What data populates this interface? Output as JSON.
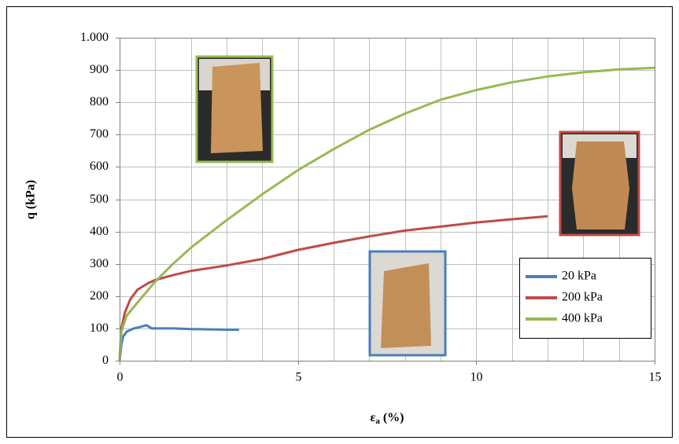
{
  "chart_data": {
    "type": "line",
    "y_label": "q (kPa)",
    "x_label": {
      "symbol": "ε",
      "subscript": "a",
      "unit": "(%)"
    },
    "xlim": [
      0,
      15
    ],
    "ylim": [
      0,
      1000
    ],
    "xticks": [
      0,
      5,
      10,
      15
    ],
    "xgrid": [
      1,
      2,
      3,
      4,
      5,
      6,
      7,
      8,
      9,
      10,
      11,
      12,
      13,
      14,
      15
    ],
    "yticks": [
      0,
      100,
      200,
      300,
      400,
      500,
      600,
      700,
      800,
      900,
      {
        "value": 1000,
        "label": "1.000"
      }
    ],
    "grid": true,
    "legend": "lower right",
    "series": [
      {
        "name": "20 kPa",
        "color": "#4a7ebb",
        "x": [
          0,
          0.05,
          0.1,
          0.2,
          0.4,
          0.6,
          0.75,
          0.9,
          1.5,
          2,
          2.5,
          3,
          3.35
        ],
        "values": [
          0,
          50,
          75,
          90,
          100,
          105,
          110,
          100,
          100,
          98,
          97,
          96,
          96
        ]
      },
      {
        "name": "200 kPa",
        "color": "#be4b48",
        "x": [
          0,
          0.05,
          0.15,
          0.3,
          0.5,
          0.8,
          1,
          1.5,
          2,
          3,
          4,
          5,
          6,
          7,
          8,
          9,
          10,
          11,
          12
        ],
        "values": [
          0,
          100,
          150,
          190,
          220,
          240,
          250,
          265,
          278,
          295,
          315,
          343,
          365,
          385,
          403,
          415,
          428,
          438,
          447
        ]
      },
      {
        "name": "400 kPa",
        "color": "#98b954",
        "x": [
          0,
          0.05,
          0.2,
          0.5,
          1,
          1.5,
          2,
          3,
          4,
          5,
          6,
          7,
          8,
          9,
          10,
          11,
          12,
          13,
          14,
          15
        ],
        "values": [
          0,
          90,
          140,
          180,
          245,
          300,
          350,
          435,
          515,
          590,
          655,
          715,
          765,
          808,
          838,
          862,
          880,
          893,
          902,
          907
        ]
      }
    ]
  }
}
